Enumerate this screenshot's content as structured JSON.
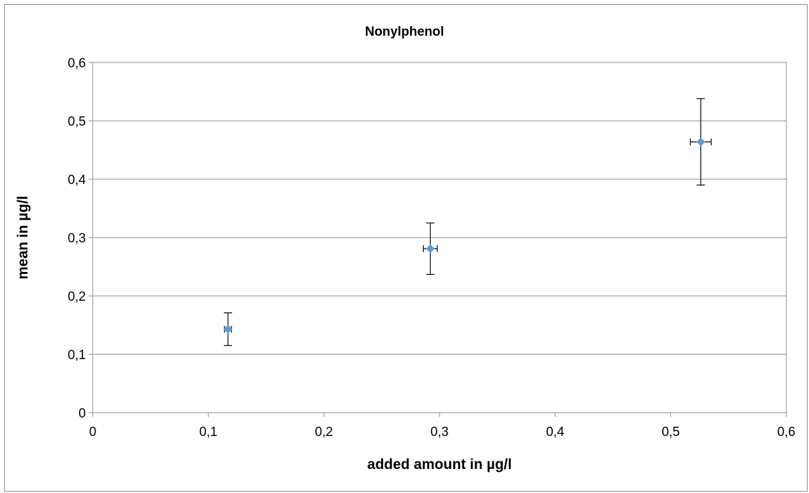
{
  "chart_data": {
    "type": "scatter",
    "title": "Nonylphenol",
    "xlabel": "added amount in µg/l",
    "ylabel": "mean in µg/l",
    "xlim": [
      0,
      0.6
    ],
    "ylim": [
      0,
      0.6
    ],
    "x_ticks": [
      "0",
      "0,1",
      "0,2",
      "0,3",
      "0,4",
      "0,5",
      "0,6"
    ],
    "y_ticks": [
      "0",
      "0,1",
      "0,2",
      "0,3",
      "0,4",
      "0,5",
      "0,6"
    ],
    "grid": "horizontal",
    "legend": "none",
    "marker_color": "#5b9bd5",
    "points": [
      {
        "x": 0.117,
        "y": 0.143,
        "x_err": 0.003,
        "y_err": 0.028
      },
      {
        "x": 0.292,
        "y": 0.281,
        "x_err": 0.006,
        "y_err": 0.044
      },
      {
        "x": 0.526,
        "y": 0.464,
        "x_err": 0.009,
        "y_err": 0.074
      }
    ]
  }
}
